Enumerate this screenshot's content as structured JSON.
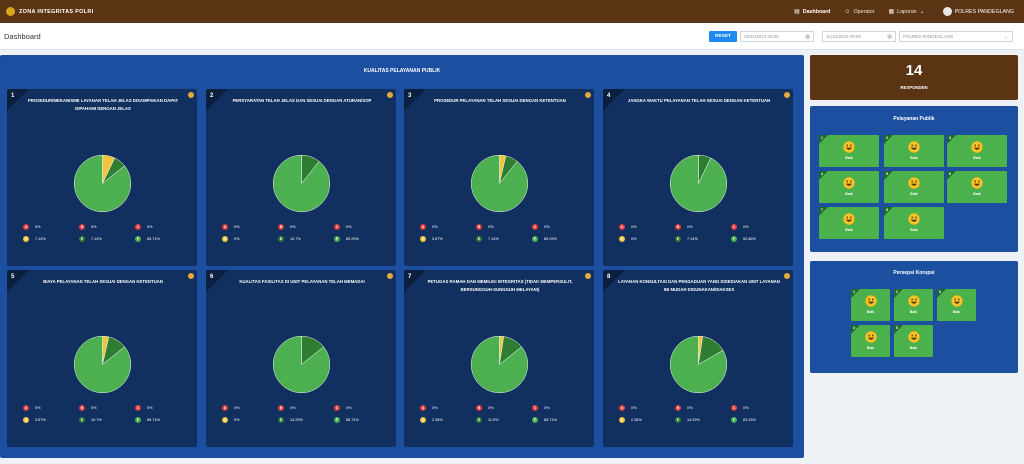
{
  "topbar": {
    "brand": "ZONA INTEGRITAS POLRI",
    "nav": [
      {
        "label": "Dashboard",
        "icon": "chart-icon",
        "active": true
      },
      {
        "label": "Operator",
        "icon": "user-icon",
        "active": false
      },
      {
        "label": "Laporan",
        "icon": "report-icon",
        "active": false
      }
    ],
    "user": "POLRES PANDEGLANG"
  },
  "header": {
    "title": "Dashboard",
    "reset_label": "RESET",
    "date_from": "25/11/2023 09:56",
    "date_to": "31/12/2023 09:56",
    "date_separator": "-",
    "unit_select": "POLRES PANDEGLANG"
  },
  "main": {
    "title": "KUALITAS PELAYANAN PUBLIK",
    "colors": {
      "A": "#e33b3b",
      "B": "#e33b3b",
      "C": "#e33b3b",
      "D": "#f2c33c",
      "E": "#2e7d32",
      "F": "#4caf50"
    },
    "cards": [
      {
        "num": "1",
        "title": "PROSEDUR/MEKANISME LAYANAN TELAH JELAS DISAMPAIKAN DAPAT DIPAHAMI DENGAN JELAS",
        "legend": {
          "A": "0%",
          "B": "0%",
          "C": "0%",
          "D": "7.14%",
          "E": "7.14%",
          "F": "85.71%"
        }
      },
      {
        "num": "2",
        "title": "PERSYARATAN TELAH JELAS DAN SESUAI DENGAN ATURAN/SOP",
        "legend": {
          "A": "0%",
          "B": "0%",
          "C": "0%",
          "D": "0%",
          "E": "10.7%",
          "F": "89.29%"
        }
      },
      {
        "num": "3",
        "title": "PROSEDUR PELAYANAN TELAH SESUAI DENGAN KETENTUAN",
        "legend": {
          "A": "0%",
          "B": "0%",
          "C": "0%",
          "D": "3.57%",
          "E": "7.14%",
          "F": "89.29%"
        }
      },
      {
        "num": "4",
        "title": "JANGKA WAKTU PELAYANAN TELAH SESUAI DENGAN KETENTUAN",
        "legend": {
          "A": "0%",
          "B": "0%",
          "C": "0%",
          "D": "0%",
          "E": "7.14%",
          "F": "92.86%"
        }
      },
      {
        "num": "5",
        "title": "BIAYA PELAYANAN TELAH SESUAI DENGAN KETENTUAN",
        "legend": {
          "A": "0%",
          "B": "0%",
          "C": "0%",
          "D": "3.57%",
          "E": "10.7%",
          "F": "85.71%"
        }
      },
      {
        "num": "6",
        "title": "KUALITAS FASILITAS DI UNIT PELAYANAN TELAH MEMADAI",
        "legend": {
          "A": "0%",
          "B": "0%",
          "C": "0%",
          "D": "0%",
          "E": "14.29%",
          "F": "85.71%"
        }
      },
      {
        "num": "7",
        "title": "PETUGAS RAMAH DAN MEMILIKI INTEGRITAS (TIDAK MEMPERSULIT, BERSUNGGUH-SUNGGUH MELAYANI)",
        "legend": {
          "A": "0%",
          "B": "0%",
          "C": "0%",
          "D": "2.38%",
          "E": "11.9%",
          "F": "85.71%"
        }
      },
      {
        "num": "8",
        "title": "LAYANAN KONSULTASI DAN PENGADUAN YANG DISEDIAKAN UNIT LAYANAN INI MUDAH DIGUNAKAN/DIAKSES",
        "legend": {
          "A": "0%",
          "B": "0%",
          "C": "0%",
          "D": "2.38%",
          "E": "14.29%",
          "F": "83.33%"
        }
      }
    ]
  },
  "chart_data": [
    {
      "type": "pie",
      "categories": [
        "A",
        "B",
        "C",
        "D",
        "E",
        "F"
      ],
      "values": [
        0,
        0,
        0,
        7.14,
        7.14,
        85.71
      ]
    },
    {
      "type": "pie",
      "categories": [
        "A",
        "B",
        "C",
        "D",
        "E",
        "F"
      ],
      "values": [
        0,
        0,
        0,
        0,
        10.7,
        89.29
      ]
    },
    {
      "type": "pie",
      "categories": [
        "A",
        "B",
        "C",
        "D",
        "E",
        "F"
      ],
      "values": [
        0,
        0,
        0,
        3.57,
        7.14,
        89.29
      ]
    },
    {
      "type": "pie",
      "categories": [
        "A",
        "B",
        "C",
        "D",
        "E",
        "F"
      ],
      "values": [
        0,
        0,
        0,
        0,
        7.14,
        92.86
      ]
    },
    {
      "type": "pie",
      "categories": [
        "A",
        "B",
        "C",
        "D",
        "E",
        "F"
      ],
      "values": [
        0,
        0,
        0,
        3.57,
        10.7,
        85.71
      ]
    },
    {
      "type": "pie",
      "categories": [
        "A",
        "B",
        "C",
        "D",
        "E",
        "F"
      ],
      "values": [
        0,
        0,
        0,
        0,
        14.29,
        85.71
      ]
    },
    {
      "type": "pie",
      "categories": [
        "A",
        "B",
        "C",
        "D",
        "E",
        "F"
      ],
      "values": [
        0,
        0,
        0,
        2.38,
        11.9,
        85.71
      ]
    },
    {
      "type": "pie",
      "categories": [
        "A",
        "B",
        "C",
        "D",
        "E",
        "F"
      ],
      "values": [
        0,
        0,
        0,
        2.38,
        14.29,
        83.33
      ]
    }
  ],
  "responden": {
    "count": "14",
    "label": "RESPONDEN"
  },
  "pelayanan_publik": {
    "title": "Pelayanan Publik",
    "tiles": [
      {
        "num": "1",
        "label": "Baik",
        "icon": "smile-emoji-icon"
      },
      {
        "num": "2",
        "label": "Baik",
        "icon": "smile-emoji-icon"
      },
      {
        "num": "3",
        "label": "Baik",
        "icon": "smile-emoji-icon"
      },
      {
        "num": "4",
        "label": "Baik",
        "icon": "smile-emoji-icon"
      },
      {
        "num": "5",
        "label": "Baik",
        "icon": "smile-emoji-icon"
      },
      {
        "num": "6",
        "label": "Baik",
        "icon": "smile-emoji-icon"
      },
      {
        "num": "7",
        "label": "Baik",
        "icon": "smile-emoji-icon"
      },
      {
        "num": "8",
        "label": "Baik",
        "icon": "smile-emoji-icon"
      }
    ]
  },
  "persepsi_korupsi": {
    "title": "Persepsi Korupsi",
    "tiles": [
      {
        "num": "1",
        "label": "Baik",
        "icon": "smile-emoji-icon"
      },
      {
        "num": "2",
        "label": "Baik",
        "icon": "smile-emoji-icon"
      },
      {
        "num": "3",
        "label": "Baik",
        "icon": "smile-emoji-icon"
      },
      {
        "num": "4",
        "label": "Baik",
        "icon": "smile-emoji-icon"
      },
      {
        "num": "5",
        "label": "Baik",
        "icon": "smile-emoji-icon"
      }
    ]
  }
}
